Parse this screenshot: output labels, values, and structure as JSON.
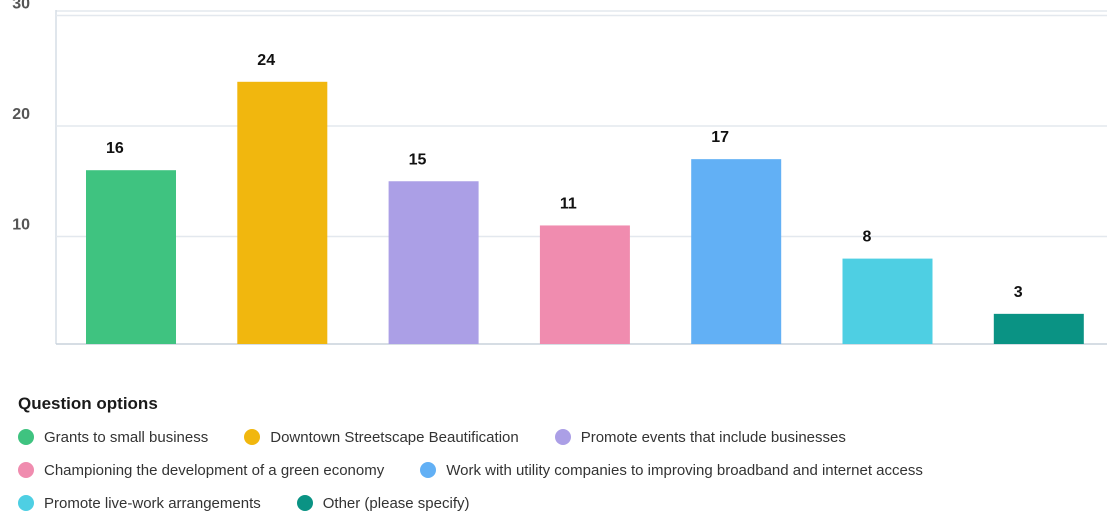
{
  "chart_data": {
    "type": "bar",
    "categories": [
      "Grants to small business",
      "Downtown Streetscape Beautification",
      "Promote events that include businesses",
      "Championing the development of a green economy",
      "Work with utility companies to improving broadband and internet access",
      "Promote live-work arrangements",
      "Other (please specify)"
    ],
    "values": [
      16,
      24,
      15,
      11,
      17,
      8,
      3
    ],
    "colors": [
      "#3fc380",
      "#f1b70e",
      "#ab9fe6",
      "#f08caf",
      "#62b0f5",
      "#4ecfe3",
      "#0a9384"
    ],
    "yticks": [
      10,
      20,
      30
    ],
    "ylim": [
      0,
      30
    ],
    "grid": true,
    "legend_position": "bottom"
  },
  "legend": {
    "title": "Question options",
    "rows": [
      [
        {
          "label": "Grants to small business",
          "color": "#3fc380"
        },
        {
          "label": "Downtown Streetscape Beautification",
          "color": "#f1b70e"
        },
        {
          "label": "Promote events that include businesses",
          "color": "#ab9fe6"
        }
      ],
      [
        {
          "label": "Championing the development of a green economy",
          "color": "#f08caf"
        },
        {
          "label": "Work with utility companies to improving broadband and internet access",
          "color": "#62b0f5"
        }
      ],
      [
        {
          "label": "Promote live-work arrangements",
          "color": "#4ecfe3"
        },
        {
          "label": "Other (please specify)",
          "color": "#0a9384"
        }
      ]
    ]
  }
}
